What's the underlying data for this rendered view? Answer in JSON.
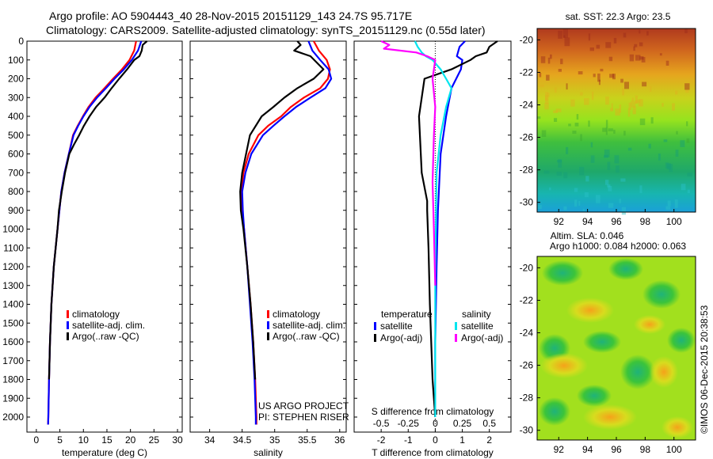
{
  "title_line1": "Argo profile: AO 5904443_40 28-Nov-2015 20151129_143 24.7S 95.717E",
  "title_line2": "Climatology: CARS2009. Satellite-adjusted climatology: synTS_20151129.nc (0.55d later)",
  "credit": "©IMOS 06-Dec-2015 20:38:53",
  "project_text": [
    "US ARGO PROJECT",
    "PI: STEPHEN RISER"
  ],
  "colors": {
    "climatology": "#ff0000",
    "satellite": "#0000ff",
    "argo": "#000000",
    "sal_satellite": "#00e5ee",
    "sal_argo": "#ff00ff"
  },
  "chart_data": [
    {
      "id": "temperature",
      "type": "line",
      "xlabel": "temperature (deg C)",
      "ylabel": "",
      "xlim": [
        -2,
        31
      ],
      "ylim": [
        2080,
        0
      ],
      "xticks": [
        0,
        5,
        10,
        15,
        20,
        25,
        30
      ],
      "yticks": [
        0,
        100,
        200,
        300,
        400,
        500,
        600,
        700,
        800,
        900,
        1000,
        1100,
        1200,
        1300,
        1400,
        1500,
        1600,
        1700,
        1800,
        1900,
        2000
      ],
      "legend": [
        "climatology",
        "satellite-adj. clim.",
        "Argo(..raw -QC)"
      ],
      "series": [
        {
          "name": "climatology",
          "color": "#ff0000",
          "x": [
            21.2,
            20.8,
            19.8,
            18.2,
            16.3,
            14.5,
            12.6,
            11.1,
            9.9,
            8.8,
            7.8,
            6.9,
            6.0,
            5.3,
            4.9,
            4.5,
            3.7,
            3.2,
            2.9,
            2.7,
            2.55,
            2.5
          ],
          "y": [
            0,
            50,
            100,
            150,
            200,
            250,
            300,
            350,
            400,
            450,
            500,
            600,
            700,
            800,
            900,
            1000,
            1200,
            1400,
            1600,
            1800,
            2000,
            2040
          ]
        },
        {
          "name": "satellite-adj. clim.",
          "color": "#0000ff",
          "x": [
            22.3,
            21.6,
            20.3,
            18.6,
            16.6,
            14.8,
            12.9,
            11.3,
            10.0,
            8.9,
            7.9,
            6.9,
            6.0,
            5.3,
            4.9,
            4.5,
            3.7,
            3.2,
            2.9,
            2.7,
            2.55,
            2.5
          ],
          "y": [
            0,
            50,
            100,
            150,
            200,
            250,
            300,
            350,
            400,
            450,
            500,
            600,
            700,
            800,
            900,
            1000,
            1200,
            1400,
            1600,
            1800,
            2000,
            2040
          ]
        },
        {
          "name": "Argo(..raw -QC)",
          "color": "#000000",
          "x": [
            23.5,
            22.6,
            22.4,
            21.9,
            20.8,
            19.3,
            17.6,
            16.0,
            14.5,
            12.7,
            11.3,
            10.1,
            9.1,
            8.0,
            7.0,
            6.1,
            5.4,
            4.8,
            4.5,
            3.7,
            3.2,
            2.9,
            2.7
          ],
          "y": [
            0,
            20,
            50,
            80,
            100,
            150,
            200,
            250,
            300,
            350,
            400,
            450,
            500,
            550,
            600,
            700,
            800,
            900,
            1000,
            1200,
            1400,
            1600,
            1800
          ]
        }
      ]
    },
    {
      "id": "salinity",
      "type": "line",
      "xlabel": "salinity",
      "ylabel": "",
      "xlim": [
        33.7,
        36.1
      ],
      "ylim": [
        2080,
        0
      ],
      "xticks": [
        34,
        34.5,
        35,
        35.5,
        36
      ],
      "legend": [
        "climatology",
        "satellite-adj. clim.",
        "Argo(..raw -QC)"
      ],
      "series": [
        {
          "name": "climatology",
          "color": "#ff0000",
          "x": [
            35.6,
            35.68,
            35.8,
            35.85,
            35.82,
            35.7,
            35.45,
            35.25,
            35.1,
            34.9,
            34.75,
            34.6,
            34.52,
            34.49,
            34.5,
            34.53,
            34.58,
            34.63,
            34.67,
            34.7,
            34.72,
            34.72
          ],
          "y": [
            0,
            50,
            100,
            150,
            200,
            250,
            300,
            350,
            400,
            450,
            500,
            600,
            700,
            800,
            900,
            1000,
            1200,
            1400,
            1600,
            1800,
            2000,
            2040
          ]
        },
        {
          "name": "satellite-adj. clim.",
          "color": "#0000ff",
          "x": [
            35.52,
            35.58,
            35.7,
            35.83,
            35.87,
            35.78,
            35.55,
            35.33,
            35.15,
            34.98,
            34.82,
            34.64,
            34.55,
            34.5,
            34.51,
            34.53,
            34.58,
            34.62,
            34.66,
            34.69,
            34.71,
            34.71
          ],
          "y": [
            0,
            50,
            100,
            150,
            200,
            250,
            300,
            350,
            400,
            450,
            500,
            600,
            700,
            800,
            900,
            1000,
            1200,
            1400,
            1600,
            1800,
            2000,
            2040
          ]
        },
        {
          "name": "Argo(..raw -QC)",
          "color": "#000000",
          "x": [
            35.35,
            35.4,
            35.3,
            35.55,
            35.75,
            35.6,
            35.35,
            35.15,
            34.98,
            34.8,
            34.62,
            34.5,
            34.47,
            34.48,
            34.52,
            34.58,
            34.63,
            34.67,
            34.7
          ],
          "y": [
            0,
            20,
            50,
            80,
            150,
            200,
            250,
            300,
            350,
            400,
            500,
            700,
            800,
            900,
            1000,
            1200,
            1400,
            1600,
            1800
          ]
        }
      ]
    },
    {
      "id": "difference",
      "type": "line",
      "xlabel": "T difference from climatology",
      "xlabel_top": "S difference from climatology",
      "xlim": [
        -3,
        2.8
      ],
      "xticks": [
        -2,
        -1,
        0,
        1,
        2
      ],
      "s_xticks": [
        "-0.5",
        "-0.25",
        "0",
        "0.25",
        "0.5"
      ],
      "ylim": [
        2080,
        0
      ],
      "legend_headers": [
        "temperature",
        "salinity"
      ],
      "legend": [
        "satellite",
        "Argo(-adj)",
        "satellite",
        "Argo(-adj)"
      ],
      "series": [
        {
          "name": "T satellite",
          "color": "#0000ff",
          "x": [
            1.1,
            0.9,
            0.8,
            1.0,
            0.95,
            0.6,
            0.4,
            0.2,
            0.1,
            0.05,
            0.0,
            0.0
          ],
          "y": [
            0,
            30,
            80,
            100,
            150,
            250,
            400,
            600,
            900,
            1200,
            1600,
            2000
          ]
        },
        {
          "name": "T Argo(-adj)",
          "color": "#000000",
          "x": [
            2.3,
            2.0,
            1.9,
            1.5,
            1.3,
            0.6,
            -0.4,
            -0.6,
            -0.5,
            -0.3,
            -0.3,
            -0.25,
            -0.2,
            -0.1,
            0.0
          ],
          "y": [
            0,
            30,
            60,
            80,
            100,
            150,
            200,
            400,
            700,
            850,
            900,
            1100,
            1400,
            1800,
            2000
          ]
        },
        {
          "name": "S satellite",
          "color": "#00e5ee",
          "x": [
            -0.75,
            -0.65,
            -0.5,
            -0.35,
            -0.1,
            0.2,
            0.4,
            0.6,
            0.4,
            0.2,
            0.05,
            0.0,
            0.0
          ],
          "y": [
            0,
            30,
            60,
            80,
            100,
            150,
            200,
            250,
            350,
            500,
            700,
            1200,
            2000
          ]
        },
        {
          "name": "S Argo(-adj)",
          "color": "#ff00ff",
          "x": [
            -2.0,
            -1.7,
            -1.9,
            -0.7,
            -0.3,
            0.0,
            -0.1,
            0.0,
            -0.05,
            -0.1,
            -0.05,
            0.0
          ],
          "y": [
            0,
            20,
            40,
            60,
            80,
            100,
            200,
            350,
            500,
            750,
            1000,
            1300
          ]
        }
      ]
    },
    {
      "id": "sst_map",
      "type": "heatmap",
      "title": "sat. SST: 22.3 Argo: 23.5",
      "xlim": [
        90.5,
        101.5
      ],
      "ylim": [
        -30.6,
        -19.3
      ],
      "xticks": [
        92,
        94,
        96,
        98,
        100
      ],
      "yticks": [
        -20,
        -22,
        -24,
        -26,
        -28,
        -30
      ]
    },
    {
      "id": "sla_map",
      "type": "heatmap",
      "title": "Altim. SLA: 0.046",
      "subtitle": "Argo h1000: 0.084 h2000: 0.063",
      "xlim": [
        90.5,
        101.5
      ],
      "ylim": [
        -30.6,
        -19.3
      ],
      "xticks": [
        92,
        94,
        96,
        98,
        100
      ],
      "yticks": [
        -20,
        -22,
        -24,
        -26,
        -28,
        -30
      ]
    }
  ]
}
